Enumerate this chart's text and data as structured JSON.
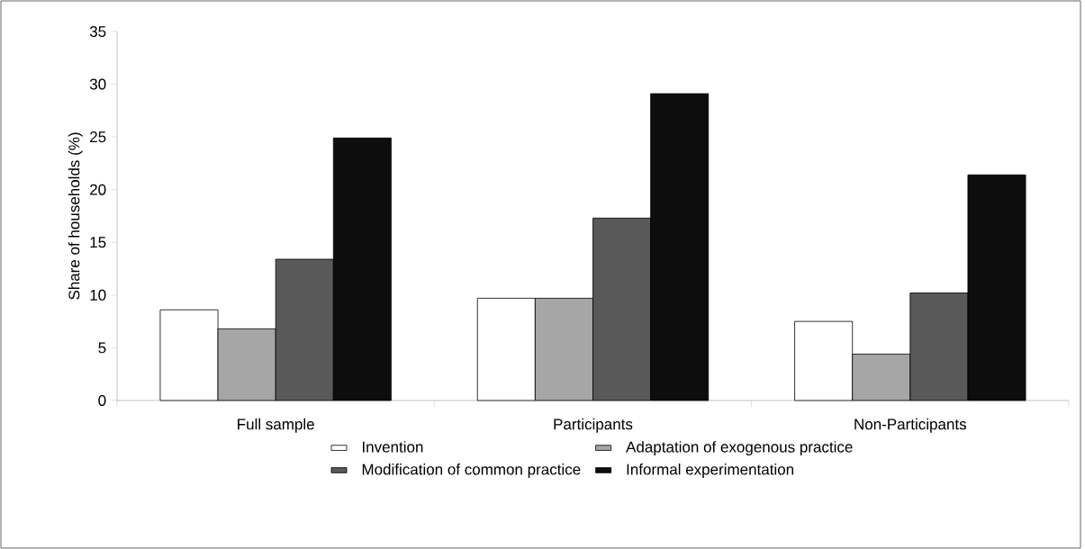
{
  "chart_data": {
    "type": "bar",
    "ylabel": "Share of households (%)",
    "categories": [
      "Full sample",
      "Participants",
      "Non-Participants"
    ],
    "series": [
      {
        "name": "Invention",
        "color": "#ffffff",
        "values": [
          8.6,
          9.7,
          7.5
        ]
      },
      {
        "name": "Adaptation of exogenous practice",
        "color": "#a6a6a6",
        "values": [
          6.8,
          9.7,
          4.4
        ]
      },
      {
        "name": "Modification of common practice",
        "color": "#595959",
        "values": [
          13.4,
          17.3,
          10.2
        ]
      },
      {
        "name": "Informal experimentation",
        "color": "#0d0d0d",
        "values": [
          24.9,
          29.1,
          21.4
        ]
      }
    ],
    "ylim": [
      0,
      35
    ],
    "yticks": [
      0,
      5,
      10,
      15,
      20,
      25,
      30,
      35
    ],
    "legend": "bottom"
  }
}
